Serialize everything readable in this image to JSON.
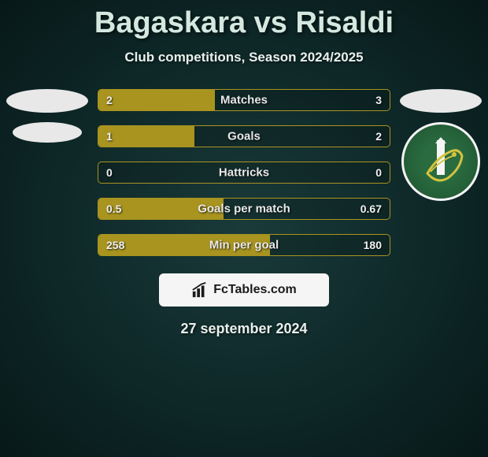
{
  "title": "Bagaskara vs Risaldi",
  "subtitle": "Club competitions, Season 2024/2025",
  "date": "27 september 2024",
  "brand": "FcTables.com",
  "accent_color": "#a8941f",
  "bars": [
    {
      "label": "Matches",
      "left": "2",
      "right": "3",
      "fill_pct": 40
    },
    {
      "label": "Goals",
      "left": "1",
      "right": "2",
      "fill_pct": 33
    },
    {
      "label": "Hattricks",
      "left": "0",
      "right": "0",
      "fill_pct": 0
    },
    {
      "label": "Goals per match",
      "left": "0.5",
      "right": "0.67",
      "fill_pct": 43
    },
    {
      "label": "Min per goal",
      "left": "258",
      "right": "180",
      "fill_pct": 59
    }
  ]
}
